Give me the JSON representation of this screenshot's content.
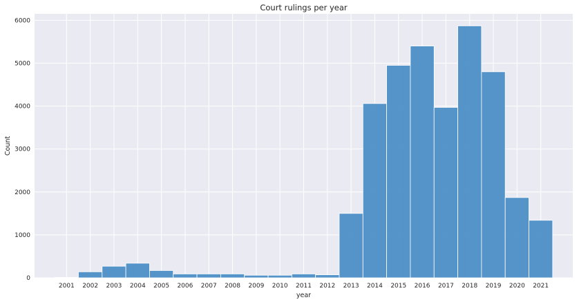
{
  "chart_data": {
    "type": "bar",
    "title": "Court rulings per year",
    "xlabel": "year",
    "ylabel": "Count",
    "categories": [
      "2001",
      "2002",
      "2003",
      "2004",
      "2005",
      "2006",
      "2007",
      "2008",
      "2009",
      "2010",
      "2011",
      "2012",
      "2013",
      "2014",
      "2015",
      "2016",
      "2017",
      "2018",
      "2019",
      "2020",
      "2021"
    ],
    "values": [
      10,
      140,
      270,
      340,
      170,
      90,
      90,
      90,
      60,
      60,
      90,
      70,
      1500,
      4060,
      4950,
      5400,
      3970,
      5870,
      4800,
      1870,
      1340
    ],
    "ylim": [
      0,
      6150
    ],
    "yticks": [
      0,
      1000,
      2000,
      3000,
      4000,
      5000,
      6000
    ],
    "grid": true,
    "style": "seaborn-darkgrid",
    "colors": {
      "bar_fill": "#4c8fc6",
      "bar_stroke": "#ffffff",
      "plot_background": "#eaeaf2",
      "grid": "#ffffff",
      "text": "#262626"
    }
  }
}
